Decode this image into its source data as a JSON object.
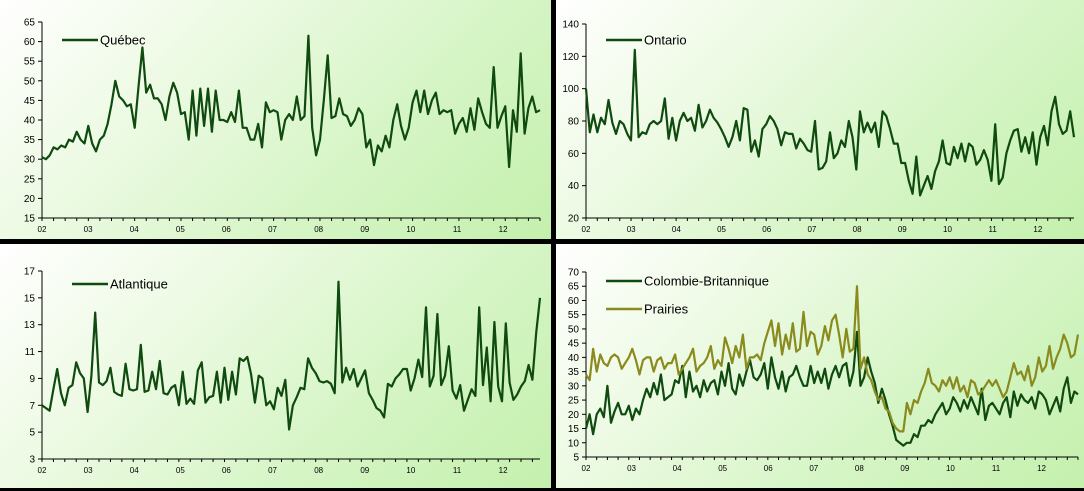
{
  "chart_data": [
    {
      "type": "line",
      "ylim": [
        15,
        65
      ],
      "yticks": [
        15,
        20,
        25,
        30,
        35,
        40,
        45,
        50,
        55,
        60,
        65
      ],
      "xticks": [
        "02",
        "03",
        "04",
        "05",
        "06",
        "07",
        "08",
        "09",
        "10",
        "11",
        "12"
      ],
      "legend_position": "top-left",
      "series": [
        {
          "name": "Québec",
          "color": "#0f4a0f",
          "values": [
            30.5,
            30,
            31,
            33,
            32.5,
            33.5,
            33,
            35,
            34.5,
            37,
            35,
            34,
            38.5,
            34,
            32,
            35,
            36,
            39,
            44,
            50,
            46,
            45,
            43.5,
            44,
            38,
            48.5,
            58.5,
            47,
            49,
            45.5,
            45.5,
            44,
            40,
            46,
            49.5,
            47,
            41.5,
            42,
            35,
            47.5,
            36,
            48,
            38.5,
            48,
            37,
            47.5,
            40,
            40,
            39.5,
            42,
            39.5,
            47.5,
            38,
            38,
            35,
            35,
            39,
            33,
            44.5,
            42,
            42.5,
            42,
            35,
            40,
            41.5,
            40,
            46,
            40,
            41,
            61.5,
            38,
            31,
            35,
            45,
            56.5,
            40.5,
            41,
            45.5,
            41.5,
            41,
            38.5,
            40,
            43,
            41.5,
            33,
            35,
            28.5,
            33.5,
            32,
            36,
            33,
            40,
            44,
            38.5,
            35,
            38,
            44.5,
            47.5,
            42,
            47.5,
            41.5,
            45,
            47,
            41.5,
            42.5,
            42,
            42.5,
            36.5,
            39,
            40.5,
            37,
            43,
            37.5,
            45.5,
            42,
            39,
            38,
            53.5,
            38,
            41,
            43.5,
            28,
            42.5,
            37,
            57,
            36.5,
            43,
            46,
            42,
            42.5
          ]
        }
      ]
    },
    {
      "type": "line",
      "ylim": [
        20,
        140
      ],
      "yticks": [
        20,
        40,
        60,
        80,
        100,
        120,
        140
      ],
      "xticks": [
        "02",
        "03",
        "04",
        "05",
        "06",
        "07",
        "08",
        "09",
        "10",
        "11",
        "12"
      ],
      "legend_position": "top-left",
      "series": [
        {
          "name": "Ontario",
          "color": "#0f4a0f",
          "values": [
            100,
            73,
            84,
            73,
            82,
            78,
            93,
            79,
            72,
            80,
            78,
            72,
            68,
            124,
            70,
            73,
            72,
            78,
            80,
            78,
            80,
            94,
            69,
            82,
            68,
            80,
            85,
            80,
            82,
            74,
            90,
            76,
            80,
            87,
            82,
            79,
            75,
            70,
            64,
            70,
            80,
            68,
            88,
            87,
            61,
            68,
            58,
            75,
            78,
            83,
            80,
            75,
            65,
            73,
            72,
            72,
            63,
            69,
            66,
            62,
            61,
            80,
            50,
            51,
            55,
            73,
            57,
            60,
            68,
            64,
            80,
            70,
            50,
            86,
            73,
            79,
            73,
            79,
            64,
            86,
            83,
            75,
            66,
            66,
            54,
            54,
            43,
            35,
            58,
            34,
            40,
            46,
            38,
            49,
            55,
            68,
            54,
            53,
            64,
            57,
            66,
            55,
            66,
            64,
            53,
            56,
            62,
            56,
            43,
            78,
            41,
            45,
            60,
            68,
            74,
            75,
            61,
            70,
            60,
            73,
            53,
            70,
            77,
            65,
            86,
            95,
            78,
            72,
            74,
            86,
            70
          ]
        }
      ]
    },
    {
      "type": "line",
      "ylim": [
        3,
        17
      ],
      "yticks": [
        3,
        5,
        7,
        9,
        11,
        13,
        15,
        17
      ],
      "xticks": [
        "02",
        "03",
        "04",
        "05",
        "06",
        "07",
        "08",
        "09",
        "10",
        "11",
        "12"
      ],
      "legend_position": "top-left",
      "series": [
        {
          "name": "Atlantique",
          "color": "#0f4a0f",
          "values": [
            7,
            6.8,
            6.6,
            8.2,
            9.7,
            7.9,
            7,
            8.3,
            8.5,
            10.2,
            9.4,
            9,
            6.5,
            9.2,
            13.9,
            8.7,
            8.5,
            8.8,
            9.8,
            8,
            7.8,
            7.7,
            10.1,
            8.2,
            8.1,
            8.2,
            11.5,
            8,
            8.1,
            9.5,
            8.2,
            10.3,
            7.9,
            7.8,
            8.3,
            8.5,
            7,
            9.5,
            7.1,
            7.5,
            7.1,
            9.6,
            10.2,
            7.2,
            7.6,
            7.7,
            9.5,
            7.2,
            9.8,
            7.4,
            9.5,
            7.8,
            10.5,
            10.3,
            10.6,
            9.3,
            7.2,
            9.2,
            9,
            7,
            7.3,
            6.7,
            8.3,
            7.7,
            8.9,
            5.2,
            7,
            7.6,
            8.3,
            8.2,
            10.5,
            9.8,
            9.4,
            8.8,
            8.7,
            8.8,
            8.6,
            7.9,
            16.2,
            8.7,
            9.8,
            8.9,
            9.7,
            8.4,
            9,
            9.6,
            7.9,
            7.4,
            6.8,
            6.6,
            6.1,
            8.6,
            8.4,
            9,
            9.3,
            9.7,
            9.7,
            8.1,
            9,
            10.4,
            9.1,
            14.3,
            8.4,
            9.2,
            13.8,
            8.5,
            9.2,
            11.4,
            8.1,
            7.5,
            8.5,
            6.6,
            7.4,
            8.2,
            7.7,
            14.3,
            8.5,
            11.3,
            7.3,
            13.2,
            8.4,
            7.3,
            13.1,
            8.7,
            7.4,
            7.8,
            8.4,
            8.8,
            10,
            8.9,
            12.4,
            15
          ]
        }
      ]
    },
    {
      "type": "line",
      "ylim": [
        5,
        70
      ],
      "yticks": [
        5,
        10,
        15,
        20,
        25,
        30,
        35,
        40,
        45,
        50,
        55,
        60,
        65,
        70
      ],
      "xticks": [
        "02",
        "03",
        "04",
        "05",
        "06",
        "07",
        "08",
        "09",
        "10",
        "11",
        "12"
      ],
      "legend_position": "top-left",
      "series": [
        {
          "name": "Colombie-Britannique",
          "color": "#0f4a0f",
          "values": [
            15,
            20,
            13,
            20,
            22,
            19,
            30,
            17,
            21,
            24,
            20,
            20,
            23,
            18,
            22,
            20,
            25,
            29,
            26,
            31,
            27,
            34,
            25,
            26,
            27,
            32,
            31,
            37,
            26,
            35,
            28,
            30,
            26,
            32,
            28,
            31,
            32,
            27,
            35,
            30,
            38,
            29,
            27,
            34,
            30,
            35,
            39,
            33,
            32,
            34,
            38,
            29,
            40,
            33,
            29,
            35,
            28,
            33,
            34,
            37,
            33,
            30,
            30,
            37,
            31,
            35,
            31,
            36,
            29,
            34,
            37,
            33,
            37,
            38,
            30,
            35,
            49,
            30,
            33,
            40,
            35,
            31,
            24,
            29,
            25,
            20,
            16,
            11,
            10,
            9,
            10,
            10,
            13,
            12,
            16,
            16,
            18,
            17,
            20,
            22,
            24,
            20,
            22,
            26,
            24,
            21,
            25,
            22,
            26,
            23,
            20,
            29,
            18,
            23,
            24,
            22,
            20,
            24,
            26,
            19,
            28,
            23,
            27,
            25,
            24,
            26,
            22,
            28,
            27,
            25,
            20,
            23,
            26,
            21,
            29,
            33,
            24,
            28,
            27
          ]
        },
        {
          "name": "Prairies",
          "color": "#8a8a1e",
          "values": [
            34,
            32,
            43,
            35,
            41,
            38,
            37,
            40,
            41,
            40,
            36,
            38,
            40,
            43,
            39,
            34,
            39,
            40,
            40,
            35,
            39,
            40,
            36,
            38,
            38,
            41,
            34,
            36,
            38,
            40,
            43,
            35,
            37,
            38,
            40,
            44,
            36,
            39,
            37,
            47,
            43,
            38,
            44,
            40,
            48,
            36,
            40,
            40,
            41,
            39,
            45,
            49,
            53,
            44,
            52,
            41,
            48,
            43,
            52,
            42,
            43,
            56,
            44,
            49,
            48,
            41,
            44,
            51,
            46,
            53,
            55,
            48,
            40,
            50,
            42,
            43,
            65,
            36,
            40,
            34,
            32,
            28,
            25,
            26,
            22,
            21,
            17,
            15,
            14,
            14,
            24,
            20,
            25,
            24,
            28,
            31,
            36,
            31,
            30,
            28,
            32,
            30,
            33,
            29,
            33,
            28,
            30,
            26,
            32,
            31,
            27,
            28,
            30,
            32,
            30,
            32,
            29,
            26,
            28,
            33,
            38,
            34,
            35,
            32,
            37,
            30,
            33,
            40,
            35,
            37,
            44,
            36,
            40,
            43,
            48,
            45,
            40,
            41,
            48
          ]
        }
      ]
    }
  ]
}
